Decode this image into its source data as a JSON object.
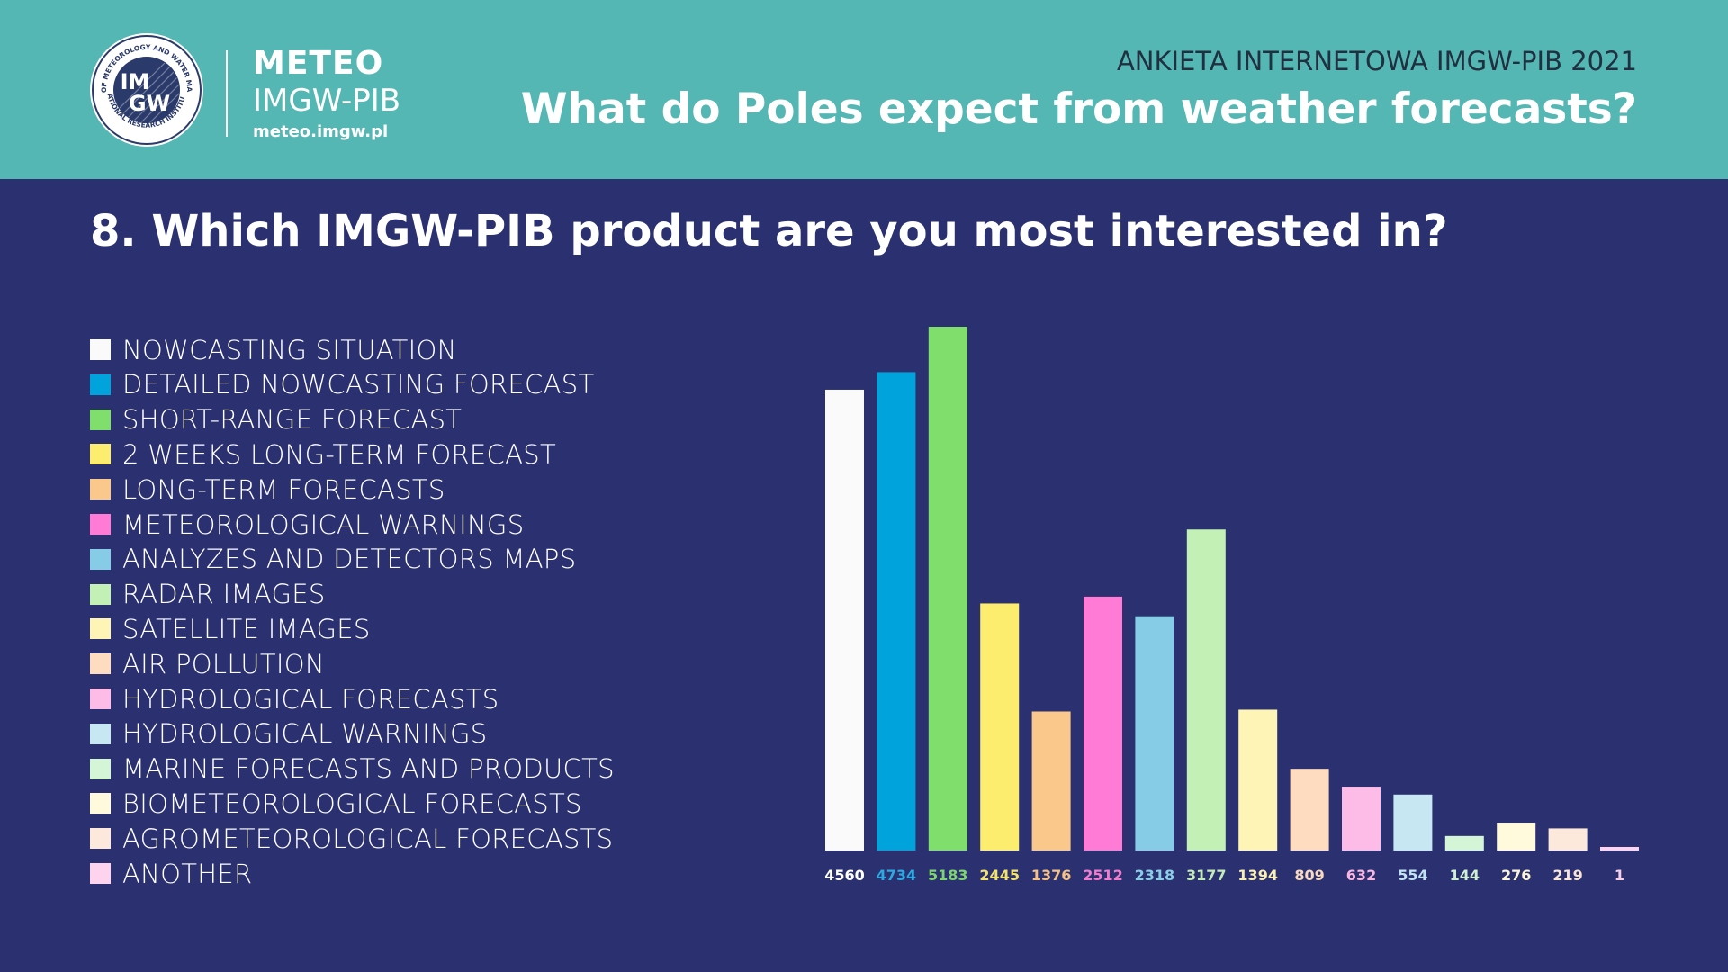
{
  "header": {
    "logo": {
      "seal_text_top": "INSTITUTE OF METEOROLOGY AND WATER MANAGEMENT",
      "seal_text_bottom": "NATIONAL RESEARCH INSTITUTE",
      "seal_mark_top": "IM",
      "seal_mark_bottom": "GW"
    },
    "brand_line1": "METEO",
    "brand_line2": "IMGW-PIB",
    "brand_url": "meteo.imgw.pl",
    "survey_label": "ANKIETA INTERNETOWA IMGW-PIB 2021",
    "title": "What do Poles expect from weather forecasts?"
  },
  "question": "8. Which IMGW-PIB product are you most interested in?",
  "chart_data": {
    "type": "bar",
    "title": "",
    "xlabel": "",
    "ylabel": "",
    "ylim": [
      0,
      5183
    ],
    "grid": false,
    "legend_position": "left",
    "categories": [
      "NOWCASTING SITUATION",
      "DETAILED NOWCASTING FORECAST",
      "SHORT-RANGE FORECAST",
      "2 WEEKS LONG-TERM FORECAST",
      "LONG-TERM FORECASTS",
      "METEOROLOGICAL WARNINGS",
      "ANALYZES AND DETECTORS MAPS",
      "RADAR IMAGES",
      "SATELLITE IMAGES",
      "AIR POLLUTION",
      "HYDROLOGICAL FORECASTS",
      "HYDROLOGICAL WARNINGS",
      "MARINE FORECASTS AND PRODUCTS",
      "BIOMETEOROLOGICAL FORECASTS",
      "AGROMETEOROLOGICAL FORECASTS",
      "ANOTHER"
    ],
    "values": [
      4560,
      4734,
      5183,
      2445,
      1376,
      2512,
      2318,
      3177,
      1394,
      809,
      632,
      554,
      144,
      276,
      219,
      1
    ],
    "colors": [
      "#fafafa",
      "#00a3db",
      "#80df6c",
      "#fced6e",
      "#fac88a",
      "#ff7bd5",
      "#86cce6",
      "#c3f0b4",
      "#fdf4b5",
      "#fddcc0",
      "#fdbbe8",
      "#c7e7f3",
      "#d5f6d6",
      "#fffadb",
      "#fde9dc",
      "#fdd3ee"
    ],
    "value_label_colors": [
      "#ffffff",
      "#2ba9e0",
      "#7ed56f",
      "#f3e36a",
      "#f5c183",
      "#f27ccc",
      "#8acfe5",
      "#c2ecb3",
      "#fbf0b2",
      "#f9d9bd",
      "#f8b6e1",
      "#c3e2ef",
      "#d0f1d1",
      "#fbf4d6",
      "#f9e4d6",
      "#f7cfe7"
    ]
  }
}
